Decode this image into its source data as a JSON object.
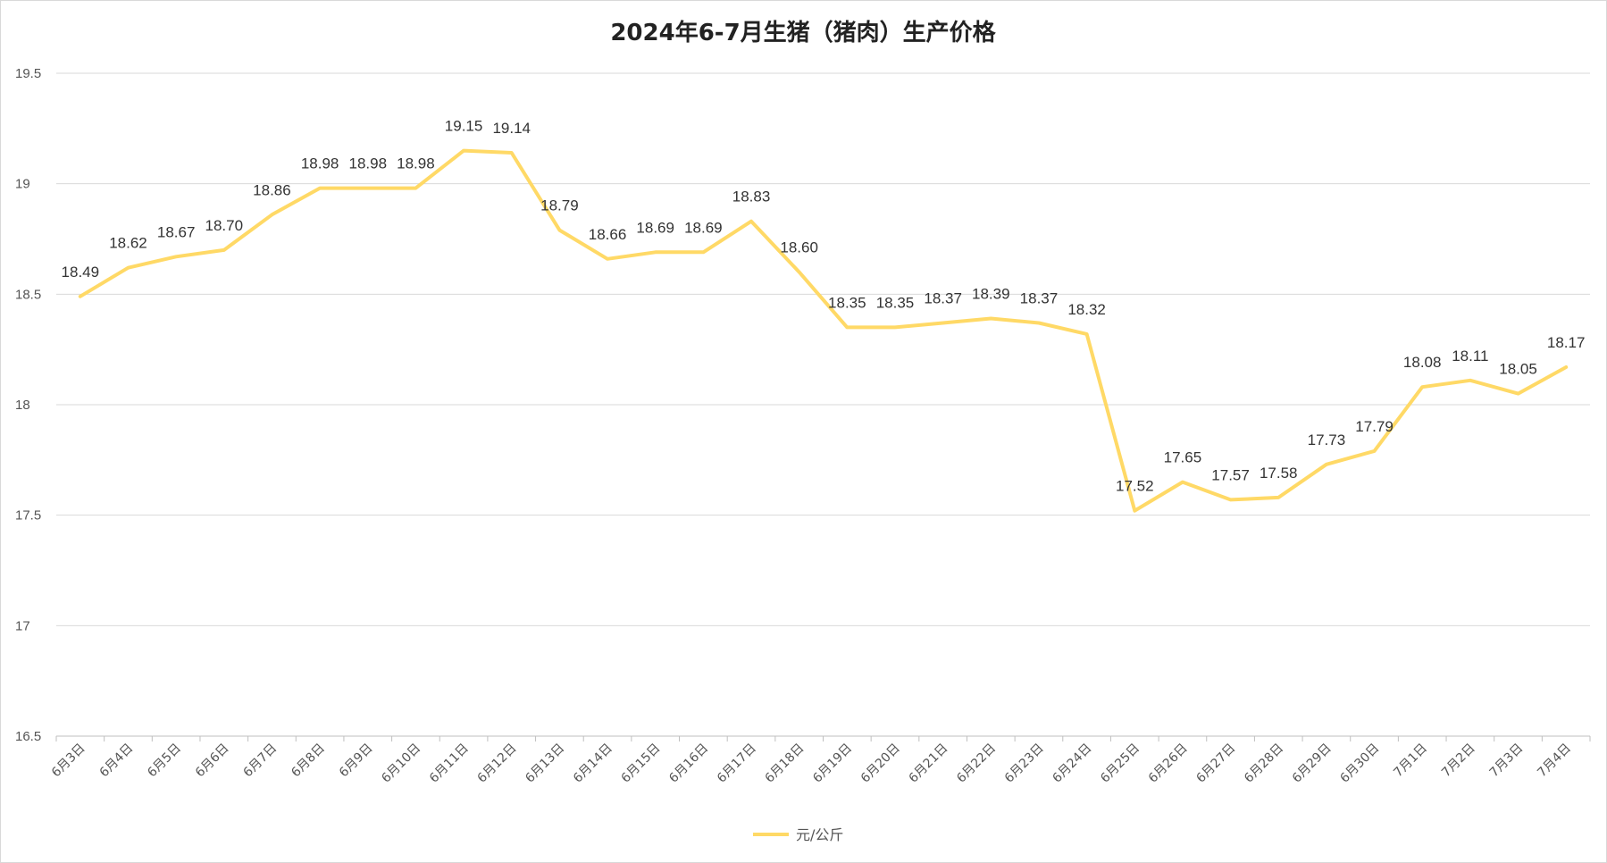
{
  "chart_data": {
    "type": "line",
    "title": "2024年6-7月生猪（猪肉）生产价格",
    "xlabel": "",
    "ylabel": "",
    "ylim": [
      16.5,
      19.5
    ],
    "yticks": [
      "16.5",
      "17",
      "17.5",
      "18",
      "18.5",
      "19",
      "19.5"
    ],
    "grid": true,
    "legend_position": "bottom",
    "categories": [
      "6月3日",
      "6月4日",
      "6月5日",
      "6月6日",
      "6月7日",
      "6月8日",
      "6月9日",
      "6月10日",
      "6月11日",
      "6月12日",
      "6月13日",
      "6月14日",
      "6月15日",
      "6月16日",
      "6月17日",
      "6月18日",
      "6月19日",
      "6月20日",
      "6月21日",
      "6月22日",
      "6月23日",
      "6月24日",
      "6月25日",
      "6月26日",
      "6月27日",
      "6月28日",
      "6月29日",
      "6月30日",
      "7月1日",
      "7月2日",
      "7月3日",
      "7月4日"
    ],
    "series": [
      {
        "name": "元/公斤",
        "color": "#ffd966",
        "values": [
          18.49,
          18.62,
          18.67,
          18.7,
          18.86,
          18.98,
          18.98,
          18.98,
          19.15,
          19.14,
          18.79,
          18.66,
          18.69,
          18.69,
          18.83,
          18.6,
          18.35,
          18.35,
          18.37,
          18.39,
          18.37,
          18.32,
          17.52,
          17.65,
          17.57,
          17.58,
          17.73,
          17.79,
          18.08,
          18.11,
          18.05,
          18.17
        ],
        "labels": [
          "18.49",
          "18.62",
          "18.67",
          "18.70",
          "18.86",
          "18.98",
          "18.98",
          "18.98",
          "19.15",
          "19.14",
          "18.79",
          "18.66",
          "18.69",
          "18.69",
          "18.83",
          "18.60",
          "18.35",
          "18.35",
          "18.37",
          "18.39",
          "18.37",
          "18.32",
          "17.52",
          "17.65",
          "17.57",
          "17.58",
          "17.73",
          "17.79",
          "18.08",
          "18.11",
          "18.05",
          "18.17"
        ]
      }
    ],
    "colors": {
      "line": "#ffd966",
      "grid": "#d9d9d9",
      "axis": "#bfbfbf",
      "text": "#555555"
    }
  }
}
